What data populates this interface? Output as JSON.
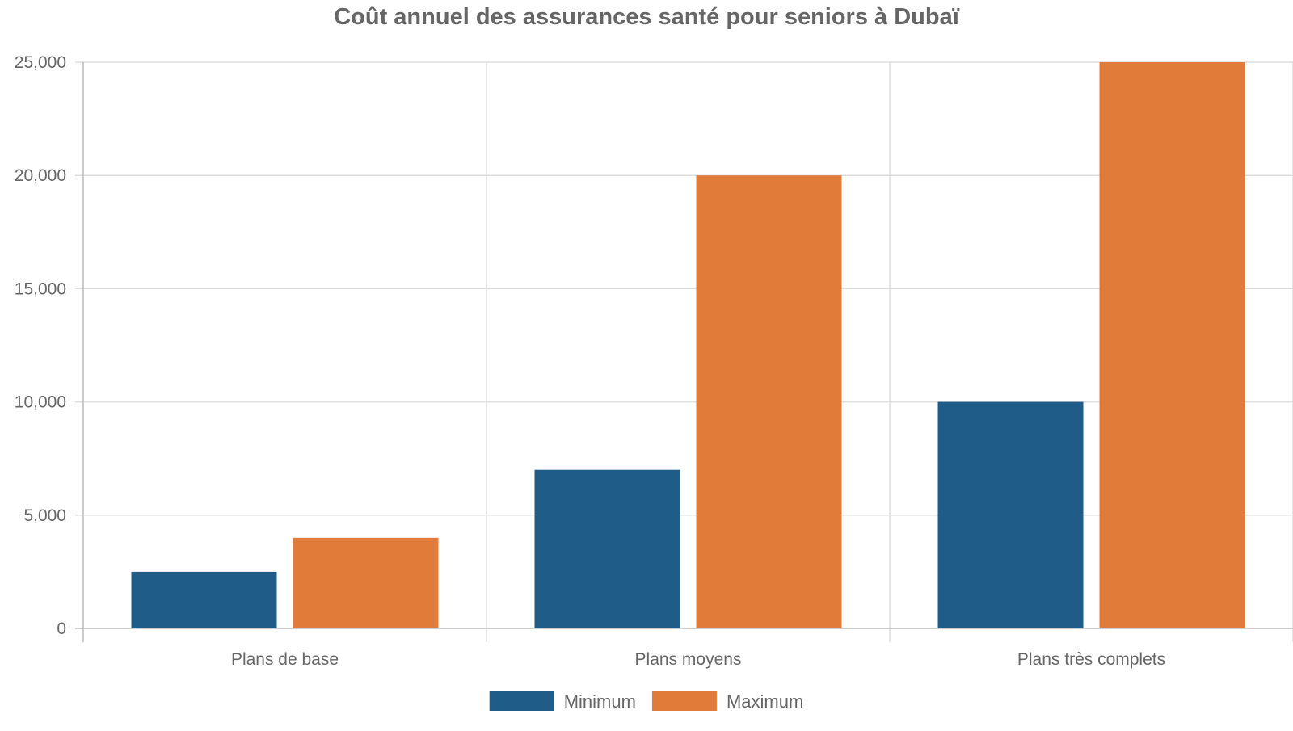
{
  "chart_data": {
    "type": "bar",
    "title": "Coût annuel des assurances santé pour seniors à Dubaï",
    "categories": [
      "Plans de base",
      "Plans moyens",
      "Plans très complets"
    ],
    "series": [
      {
        "name": "Minimum",
        "values": [
          2500,
          7000,
          10000
        ],
        "color": "#1f5c87"
      },
      {
        "name": "Maximum",
        "values": [
          4000,
          20000,
          25000
        ],
        "color": "#e07b39"
      }
    ],
    "xlabel": "",
    "ylabel": "",
    "ylim": [
      0,
      25000
    ],
    "yticks": [
      0,
      5000,
      10000,
      15000,
      20000,
      25000
    ],
    "ytick_labels": [
      "0",
      "5,000",
      "10,000",
      "15,000",
      "20,000",
      "25,000"
    ],
    "grid": true,
    "legend_position": "bottom-center",
    "colors": {
      "grid": "#dddddd",
      "axis": "#bbbbbb",
      "text": "#666666"
    }
  }
}
